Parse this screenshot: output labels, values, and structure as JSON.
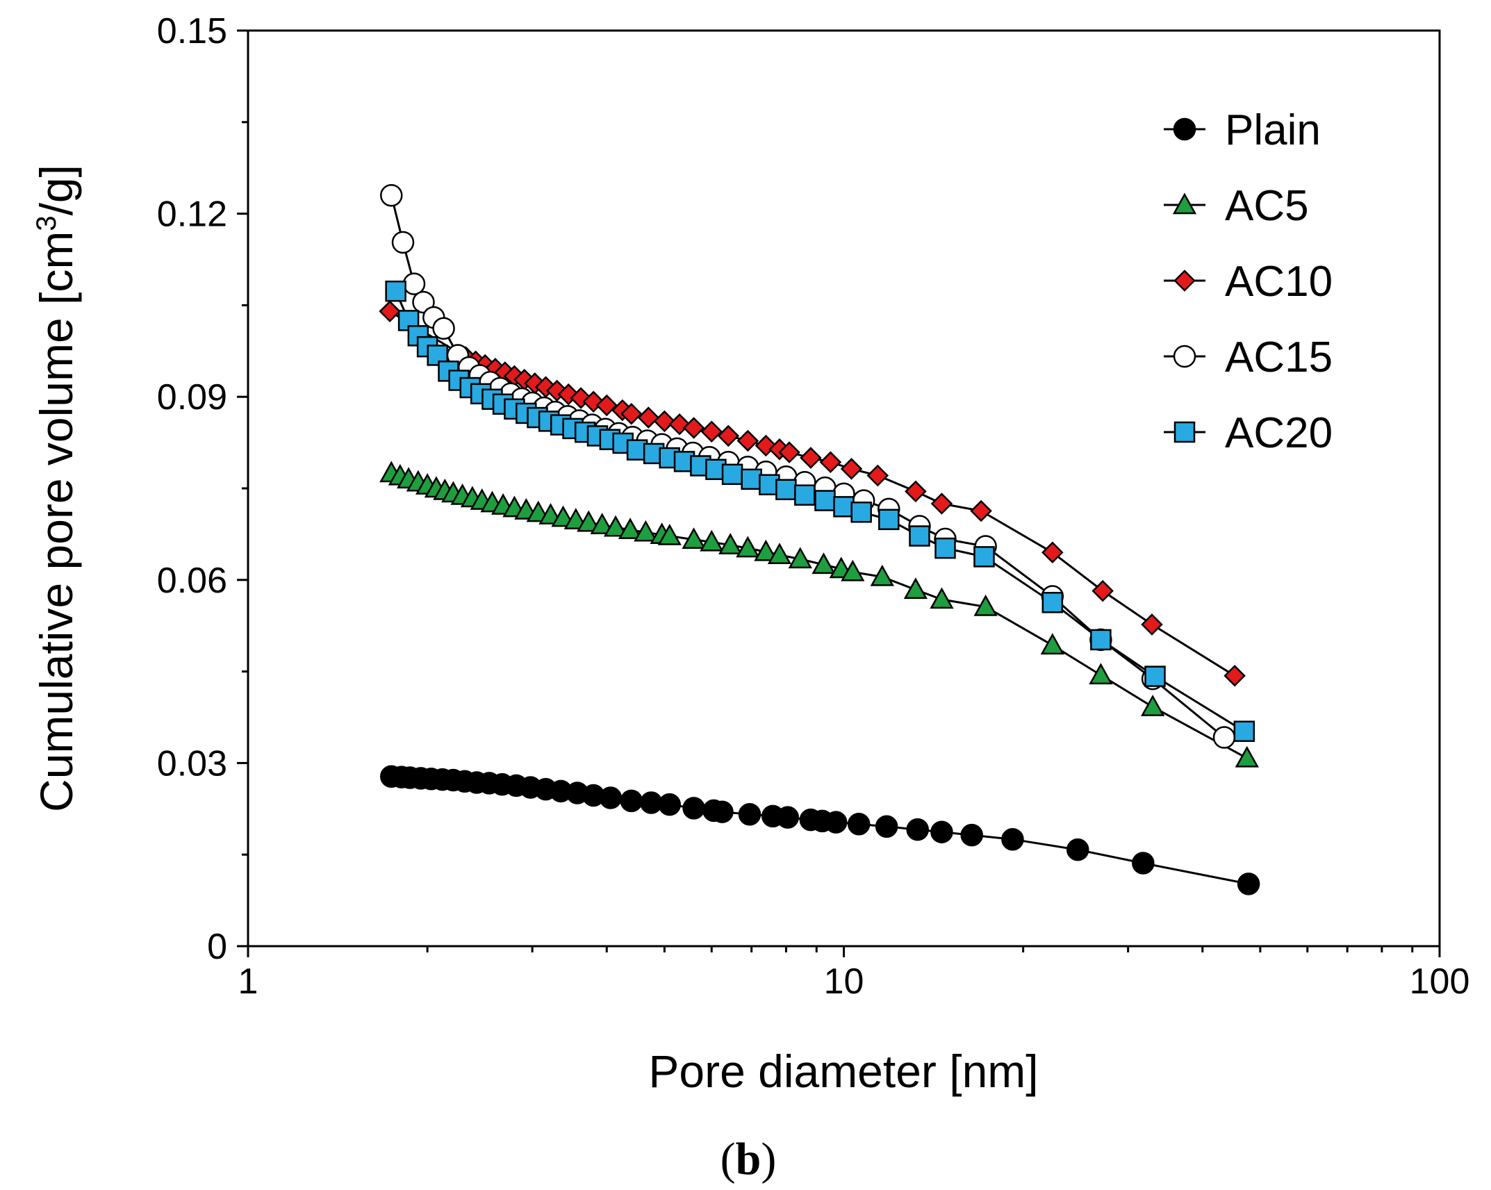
{
  "chart_data": {
    "type": "scatter",
    "xscale": "log",
    "xlim": [
      1,
      100
    ],
    "ylim": [
      0,
      0.15
    ],
    "xlabel": "Pore diameter [nm]",
    "ylabel": "Cumulative pore volume [cm",
    "ylabel_sup": "3",
    "ylabel_tail": "/g]",
    "caption_open": "(",
    "caption_letter": "b",
    "caption_close": ")",
    "x_ticks": [
      {
        "value": 1,
        "label": "1"
      },
      {
        "value": 10,
        "label": "10"
      },
      {
        "value": 100,
        "label": "100"
      }
    ],
    "y_ticks": [
      {
        "value": 0,
        "label": "0"
      },
      {
        "value": 0.03,
        "label": "0.03"
      },
      {
        "value": 0.06,
        "label": "0.06"
      },
      {
        "value": 0.09,
        "label": "0.09"
      },
      {
        "value": 0.12,
        "label": "0.12"
      },
      {
        "value": 0.15,
        "label": "0.15"
      }
    ],
    "legend_position": "top-right",
    "series": [
      {
        "name": "Plain",
        "marker": "circle",
        "color": "#000000",
        "points": [
          [
            1.74,
            0.0278
          ],
          [
            1.81,
            0.0277
          ],
          [
            1.87,
            0.0276
          ],
          [
            1.95,
            0.0275
          ],
          [
            2.03,
            0.0274
          ],
          [
            2.12,
            0.0273
          ],
          [
            2.21,
            0.0272
          ],
          [
            2.31,
            0.027
          ],
          [
            2.42,
            0.0268
          ],
          [
            2.54,
            0.0267
          ],
          [
            2.67,
            0.0265
          ],
          [
            2.82,
            0.0263
          ],
          [
            2.98,
            0.026
          ],
          [
            3.16,
            0.0257
          ],
          [
            3.35,
            0.0254
          ],
          [
            3.57,
            0.0251
          ],
          [
            3.8,
            0.0247
          ],
          [
            4.06,
            0.0243
          ],
          [
            4.4,
            0.0238
          ],
          [
            4.75,
            0.0235
          ],
          [
            5.1,
            0.0232
          ],
          [
            5.6,
            0.0226
          ],
          [
            6.05,
            0.0222
          ],
          [
            6.25,
            0.022
          ],
          [
            6.95,
            0.0216
          ],
          [
            7.6,
            0.0213
          ],
          [
            8.05,
            0.0211
          ],
          [
            8.8,
            0.0207
          ],
          [
            9.2,
            0.0205
          ],
          [
            9.7,
            0.0203
          ],
          [
            10.6,
            0.02
          ],
          [
            11.8,
            0.0196
          ],
          [
            13.3,
            0.0191
          ],
          [
            14.6,
            0.0187
          ],
          [
            16.4,
            0.0182
          ],
          [
            19.2,
            0.0175
          ],
          [
            24.7,
            0.0158
          ],
          [
            31.8,
            0.0136
          ],
          [
            47.8,
            0.0102
          ]
        ]
      },
      {
        "name": "AC5",
        "marker": "triangle",
        "color": "#1e9e3e",
        "points": [
          [
            1.74,
            0.0775
          ],
          [
            1.8,
            0.077
          ],
          [
            1.86,
            0.0765
          ],
          [
            1.93,
            0.076
          ],
          [
            2.0,
            0.0755
          ],
          [
            2.07,
            0.075
          ],
          [
            2.14,
            0.0746
          ],
          [
            2.21,
            0.0742
          ],
          [
            2.29,
            0.0738
          ],
          [
            2.38,
            0.0734
          ],
          [
            2.47,
            0.073
          ],
          [
            2.57,
            0.0726
          ],
          [
            2.68,
            0.0722
          ],
          [
            2.8,
            0.0718
          ],
          [
            2.93,
            0.0714
          ],
          [
            3.07,
            0.071
          ],
          [
            3.22,
            0.0706
          ],
          [
            3.38,
            0.0702
          ],
          [
            3.55,
            0.0698
          ],
          [
            3.73,
            0.0694
          ],
          [
            3.93,
            0.069
          ],
          [
            4.14,
            0.0686
          ],
          [
            4.38,
            0.0682
          ],
          [
            4.65,
            0.0678
          ],
          [
            4.95,
            0.0674
          ],
          [
            5.1,
            0.0672
          ],
          [
            5.6,
            0.0666
          ],
          [
            6.0,
            0.0662
          ],
          [
            6.45,
            0.0657
          ],
          [
            6.9,
            0.0652
          ],
          [
            7.4,
            0.0646
          ],
          [
            7.8,
            0.0641
          ],
          [
            8.45,
            0.0634
          ],
          [
            9.25,
            0.0625
          ],
          [
            9.9,
            0.0618
          ],
          [
            10.35,
            0.0613
          ],
          [
            11.6,
            0.0605
          ],
          [
            13.2,
            0.0584
          ],
          [
            14.6,
            0.0568
          ],
          [
            17.3,
            0.0556
          ],
          [
            22.4,
            0.0493
          ],
          [
            27.0,
            0.0444
          ],
          [
            33.0,
            0.0392
          ],
          [
            47.5,
            0.0308
          ]
        ]
      },
      {
        "name": "AC10",
        "marker": "diamond",
        "color": "#e31a1c",
        "points": [
          [
            1.73,
            0.104
          ],
          [
            2.32,
            0.0965
          ],
          [
            2.41,
            0.0958
          ],
          [
            2.5,
            0.0952
          ],
          [
            2.6,
            0.0946
          ],
          [
            2.7,
            0.094
          ],
          [
            2.8,
            0.0934
          ],
          [
            2.91,
            0.0928
          ],
          [
            3.03,
            0.0922
          ],
          [
            3.16,
            0.0916
          ],
          [
            3.3,
            0.091
          ],
          [
            3.45,
            0.0904
          ],
          [
            3.62,
            0.0898
          ],
          [
            3.8,
            0.0892
          ],
          [
            4.0,
            0.0886
          ],
          [
            4.25,
            0.0878
          ],
          [
            4.4,
            0.0872
          ],
          [
            4.7,
            0.0866
          ],
          [
            5.0,
            0.086
          ],
          [
            5.3,
            0.0855
          ],
          [
            5.6,
            0.0849
          ],
          [
            6.0,
            0.0843
          ],
          [
            6.4,
            0.0836
          ],
          [
            6.9,
            0.0828
          ],
          [
            7.4,
            0.082
          ],
          [
            7.8,
            0.0814
          ],
          [
            8.1,
            0.0809
          ],
          [
            8.8,
            0.08
          ],
          [
            9.5,
            0.0793
          ],
          [
            10.3,
            0.0782
          ],
          [
            11.4,
            0.0771
          ],
          [
            13.2,
            0.0745
          ],
          [
            14.6,
            0.0725
          ],
          [
            17.0,
            0.0713
          ],
          [
            22.4,
            0.0645
          ],
          [
            27.2,
            0.0582
          ],
          [
            32.9,
            0.0527
          ],
          [
            45.3,
            0.0443
          ]
        ]
      },
      {
        "name": "AC15",
        "marker": "open-circle",
        "color": "#ffffff",
        "points": [
          [
            1.74,
            0.123
          ],
          [
            1.82,
            0.1153
          ],
          [
            1.9,
            0.1085
          ],
          [
            1.97,
            0.1055
          ],
          [
            2.05,
            0.103
          ],
          [
            2.13,
            0.1012
          ],
          [
            2.25,
            0.0968
          ],
          [
            2.35,
            0.0948
          ],
          [
            2.45,
            0.0935
          ],
          [
            2.55,
            0.0924
          ],
          [
            2.65,
            0.0914
          ],
          [
            2.76,
            0.0905
          ],
          [
            2.88,
            0.0897
          ],
          [
            3.0,
            0.089
          ],
          [
            3.14,
            0.0882
          ],
          [
            3.28,
            0.0875
          ],
          [
            3.44,
            0.0868
          ],
          [
            3.6,
            0.0861
          ],
          [
            3.78,
            0.0854
          ],
          [
            3.98,
            0.0847
          ],
          [
            4.19,
            0.084
          ],
          [
            4.42,
            0.0834
          ],
          [
            4.68,
            0.0828
          ],
          [
            4.95,
            0.0822
          ],
          [
            5.25,
            0.0815
          ],
          [
            5.58,
            0.0808
          ],
          [
            5.95,
            0.0801
          ],
          [
            6.4,
            0.0793
          ],
          [
            6.9,
            0.0785
          ],
          [
            7.4,
            0.0777
          ],
          [
            8.0,
            0.0769
          ],
          [
            8.6,
            0.076
          ],
          [
            9.3,
            0.0751
          ],
          [
            10.0,
            0.0741
          ],
          [
            10.8,
            0.073
          ],
          [
            11.9,
            0.0716
          ],
          [
            13.4,
            0.0688
          ],
          [
            14.8,
            0.0667
          ],
          [
            17.3,
            0.0655
          ],
          [
            22.4,
            0.0573
          ],
          [
            27.0,
            0.0502
          ],
          [
            33.0,
            0.0438
          ],
          [
            43.5,
            0.0342
          ]
        ]
      },
      {
        "name": "AC20",
        "marker": "square",
        "color": "#29a9e1",
        "points": [
          [
            1.77,
            0.1073
          ],
          [
            1.86,
            0.1025
          ],
          [
            1.93,
            0.1
          ],
          [
            2.0,
            0.0982
          ],
          [
            2.08,
            0.0968
          ],
          [
            2.17,
            0.0942
          ],
          [
            2.26,
            0.0927
          ],
          [
            2.36,
            0.0915
          ],
          [
            2.46,
            0.0905
          ],
          [
            2.57,
            0.0896
          ],
          [
            2.68,
            0.0888
          ],
          [
            2.8,
            0.088
          ],
          [
            2.93,
            0.0873
          ],
          [
            3.06,
            0.0866
          ],
          [
            3.2,
            0.086
          ],
          [
            3.35,
            0.0854
          ],
          [
            3.51,
            0.0848
          ],
          [
            3.68,
            0.0842
          ],
          [
            3.86,
            0.0836
          ],
          [
            4.05,
            0.083
          ],
          [
            4.26,
            0.0824
          ],
          [
            4.5,
            0.0813
          ],
          [
            4.8,
            0.0807
          ],
          [
            5.1,
            0.08
          ],
          [
            5.4,
            0.0794
          ],
          [
            5.75,
            0.0787
          ],
          [
            6.1,
            0.0781
          ],
          [
            6.5,
            0.0773
          ],
          [
            7.0,
            0.0765
          ],
          [
            7.5,
            0.0756
          ],
          [
            8.0,
            0.0748
          ],
          [
            8.6,
            0.0739
          ],
          [
            9.3,
            0.073
          ],
          [
            10.0,
            0.072
          ],
          [
            10.7,
            0.0711
          ],
          [
            11.9,
            0.0699
          ],
          [
            13.4,
            0.0672
          ],
          [
            14.8,
            0.0652
          ],
          [
            17.2,
            0.0638
          ],
          [
            22.4,
            0.0563
          ],
          [
            27.0,
            0.0502
          ],
          [
            33.3,
            0.0442
          ],
          [
            47.0,
            0.0352
          ]
        ]
      }
    ]
  }
}
